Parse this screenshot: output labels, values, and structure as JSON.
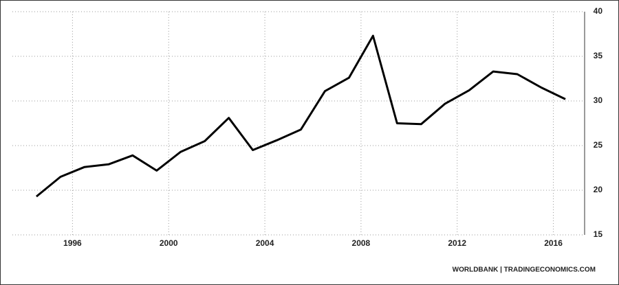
{
  "chart_data": {
    "type": "line",
    "x": [
      1994.5,
      1995.5,
      1996.5,
      1997.5,
      1998.5,
      1999.5,
      2000.5,
      2001.5,
      2002.5,
      2003.5,
      2004.5,
      2005.5,
      2006.5,
      2007.5,
      2008.5,
      2009.5,
      2010.5,
      2011.5,
      2012.5,
      2013.5,
      2014.5,
      2015.5,
      2016.5
    ],
    "values": [
      19.3,
      21.5,
      22.6,
      22.9,
      23.9,
      22.2,
      24.3,
      25.5,
      28.1,
      24.5,
      25.6,
      26.8,
      31.1,
      32.6,
      37.3,
      27.5,
      27.4,
      29.7,
      31.2,
      33.3,
      33.0,
      31.5,
      30.2
    ],
    "color": "#000000",
    "xlim": [
      1993.5,
      2017.3
    ],
    "xticks": [
      1996,
      2000,
      2004,
      2008,
      2012,
      2016
    ],
    "ylim": [
      15,
      40
    ],
    "yticks": [
      15,
      20,
      25,
      30,
      35,
      40
    ],
    "grid": true,
    "source": "WORLDBANK | TRADINGECONOMICS.COM"
  }
}
